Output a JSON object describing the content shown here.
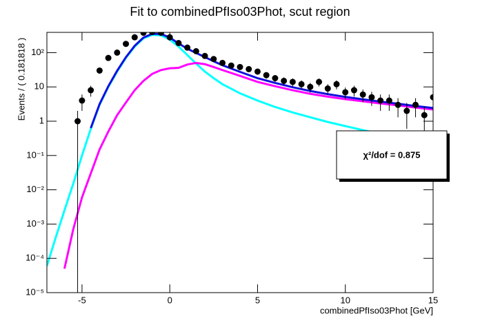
{
  "chart_data": {
    "type": "scatter",
    "title": "Fit to combinedPfIso03Phot, scut region",
    "x_label": "combinedPfIso03Phot [GeV]",
    "y_label": "Events / ( 0.181818 )",
    "annotation": "χ²/dof = 0.875",
    "ylog": true,
    "grid": false,
    "xlim": [
      -7,
      15
    ],
    "ylim": [
      1e-05,
      390
    ],
    "xticks": [
      -5,
      0,
      5,
      10,
      15
    ],
    "yticks": [
      {
        "value": 1e-05,
        "label": "10⁻⁵"
      },
      {
        "value": 0.0001,
        "label": "10⁻⁴"
      },
      {
        "value": 0.001,
        "label": "10⁻³"
      },
      {
        "value": 0.01,
        "label": "10⁻²"
      },
      {
        "value": 0.1,
        "label": "10⁻¹"
      },
      1,
      10,
      {
        "value": 100,
        "label": "10²"
      }
    ],
    "series": [
      {
        "mode": "markers",
        "color": "#000000",
        "x": [
          -5.25,
          -5,
          -4.5,
          -4,
          -3.5,
          -3,
          -2.5,
          -2,
          -1.5,
          -1,
          -0.5,
          0,
          0.5,
          1,
          1.5,
          2,
          2.5,
          3,
          3.5,
          4,
          4.5,
          5,
          5.5,
          6,
          6.5,
          7,
          7.5,
          8,
          8.5,
          9,
          9.5,
          10,
          10.5,
          11,
          11.5,
          12,
          12.5,
          13,
          13.5,
          14,
          14.5,
          15
        ],
        "values": [
          1,
          4,
          8,
          30,
          70,
          100,
          180,
          280,
          380,
          400,
          380,
          280,
          190,
          140,
          110,
          80,
          65,
          50,
          42,
          38,
          33,
          28,
          22,
          18,
          15,
          14,
          12,
          10,
          14,
          9,
          12,
          7,
          8,
          6,
          5,
          4,
          4,
          3,
          2,
          3,
          1.5,
          5
        ],
        "errors": [
          1,
          2,
          2.8,
          5.5,
          8.4,
          10,
          13.4,
          16.7,
          19.5,
          20,
          19.5,
          16.7,
          13.8,
          11.8,
          10.5,
          8.9,
          8.1,
          7.1,
          6.5,
          6.2,
          5.7,
          5.3,
          4.7,
          4.2,
          3.9,
          3.7,
          3.5,
          3.2,
          3.7,
          3,
          3.5,
          2.6,
          2.8,
          2.4,
          2.2,
          2,
          2,
          1.7,
          1.4,
          1.7,
          1.2,
          2.2
        ]
      },
      {
        "mode": "line",
        "color": "#00ffff",
        "x": [
          -7,
          -6.5,
          -6,
          -5.5,
          -5,
          -4.5,
          -4,
          -3.5,
          -3,
          -2.5,
          -2,
          -1.5,
          -1,
          -0.5,
          0,
          0.5,
          1,
          1.5,
          2,
          2.5,
          3,
          4,
          5,
          6,
          7,
          8,
          9,
          10,
          11,
          12,
          13,
          14,
          15
        ],
        "values": [
          6e-05,
          0.0004,
          0.0025,
          0.015,
          0.1,
          0.6,
          3,
          10,
          28,
          70,
          150,
          260,
          330,
          320,
          240,
          150,
          85,
          48,
          28,
          18,
          12,
          6.5,
          4,
          2.6,
          1.8,
          1.3,
          0.95,
          0.72,
          0.55,
          0.43,
          0.34,
          0.27,
          0.22
        ]
      },
      {
        "mode": "line",
        "color": "#ff00ff",
        "x": [
          -7,
          -6.5,
          -6,
          -5.5,
          -5,
          -4.5,
          -4,
          -3.5,
          -3,
          -2.5,
          -2,
          -1.5,
          -1,
          -0.5,
          0,
          0.5,
          1,
          1.5,
          2,
          2.5,
          3,
          4,
          5,
          6,
          7,
          8,
          9,
          10,
          11,
          12,
          13,
          14,
          15
        ],
        "values": [
          null,
          null,
          5e-05,
          0.0007,
          0.006,
          0.03,
          0.15,
          0.5,
          1.5,
          3.5,
          8,
          15,
          24,
          31,
          35,
          36,
          45,
          50,
          46,
          38,
          31,
          21,
          14,
          10.5,
          8,
          6.3,
          5.2,
          4.4,
          3.8,
          3.3,
          2.9,
          2.5,
          2.2
        ]
      },
      {
        "mode": "line",
        "color": "#1010e0",
        "x": [
          -7,
          -6.5,
          -6,
          -5.5,
          -5,
          -4.5,
          -4,
          -3.5,
          -3,
          -2.5,
          -2,
          -1.5,
          -1,
          -0.5,
          0,
          0.5,
          1,
          1.5,
          2,
          2.5,
          3,
          4,
          5,
          6,
          7,
          8,
          9,
          10,
          11,
          12,
          13,
          14,
          15
        ],
        "values": [
          null,
          null,
          null,
          null,
          null,
          0.63,
          3.15,
          10.5,
          29.5,
          73.5,
          158,
          275,
          354,
          351,
          275,
          186,
          130,
          98,
          74,
          56,
          43,
          27.5,
          18,
          13.1,
          9.8,
          7.6,
          6.15,
          5.1,
          4.35,
          3.73,
          3.24,
          2.77,
          2.42
        ]
      }
    ]
  }
}
